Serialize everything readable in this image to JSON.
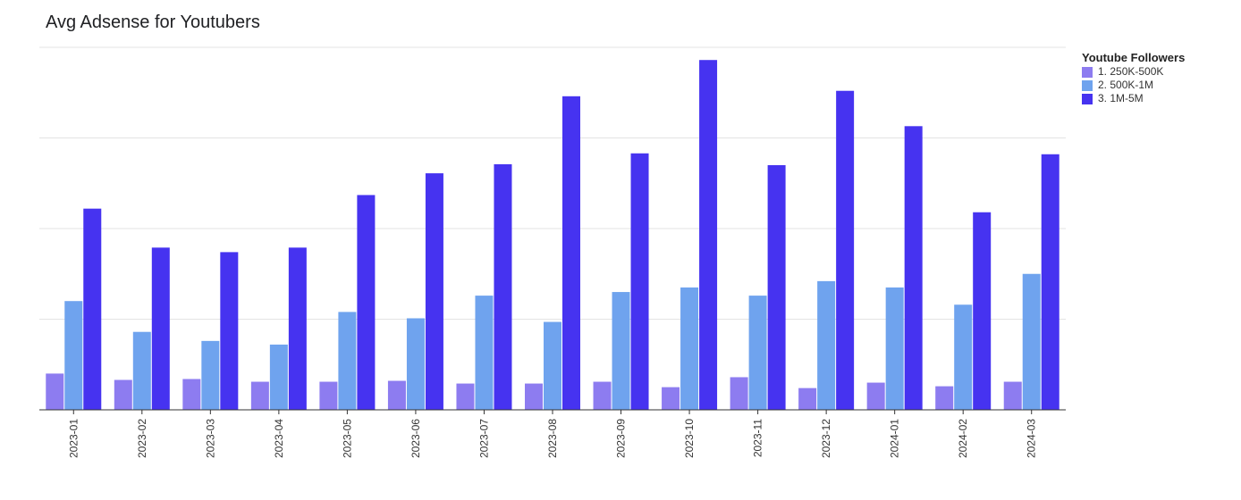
{
  "chart_data": {
    "type": "bar",
    "title": "Avg Adsense for Youtubers",
    "xlabel": "",
    "ylabel": "",
    "categories": [
      "2023-01",
      "2023-02",
      "2023-03",
      "2023-04",
      "2023-05",
      "2023-06",
      "2023-07",
      "2023-08",
      "2023-09",
      "2023-10",
      "2023-11",
      "2023-12",
      "2024-01",
      "2024-02",
      "2024-03"
    ],
    "series": [
      {
        "name": "1. 250K-500K",
        "color": "#8d7cf0",
        "values": [
          40,
          33,
          34,
          31,
          31,
          32,
          29,
          29,
          31,
          25,
          36,
          24,
          30,
          26,
          31
        ]
      },
      {
        "name": "2. 500K-1M",
        "color": "#6fa3ee",
        "values": [
          120,
          86,
          76,
          72,
          108,
          101,
          126,
          97,
          130,
          135,
          126,
          142,
          135,
          116,
          150
        ]
      },
      {
        "name": "3. 1M-5M",
        "color": "#4633f0",
        "values": [
          222,
          179,
          174,
          179,
          237,
          261,
          271,
          346,
          283,
          386,
          270,
          352,
          313,
          218,
          282
        ]
      }
    ],
    "ylim": [
      0,
      400
    ],
    "y_ticks": [
      0,
      100,
      200,
      300,
      400
    ],
    "y_tick_labels_shown": false,
    "grid": true,
    "legend": {
      "title": "Youtube Followers",
      "placement": "right"
    }
  }
}
